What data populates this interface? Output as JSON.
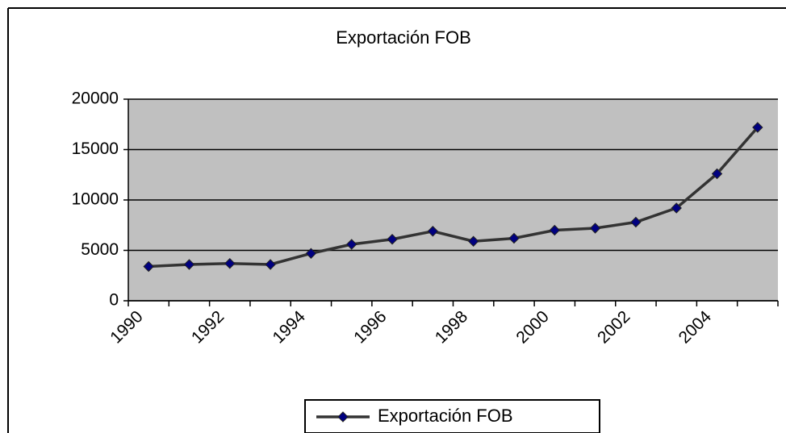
{
  "chart_data": {
    "type": "line",
    "title": "Exportación FOB",
    "categories": [
      "1990",
      null,
      "1992",
      null,
      "1994",
      null,
      "1996",
      null,
      "1998",
      null,
      "2000",
      null,
      "2002",
      null,
      "2004",
      null
    ],
    "series": [
      {
        "name": "Exportación FOB",
        "color": "#000080",
        "line_color": "#333333",
        "values": [
          3400,
          3600,
          3700,
          3600,
          4700,
          5600,
          6100,
          6900,
          5900,
          6200,
          7000,
          7200,
          7800,
          9200,
          12600,
          17200
        ]
      }
    ],
    "ylim": [
      0,
      20000
    ],
    "yticks": [
      0,
      5000,
      10000,
      15000,
      20000
    ],
    "grid": true,
    "plot_background": "#c0c0c0",
    "legend": "bottom"
  }
}
